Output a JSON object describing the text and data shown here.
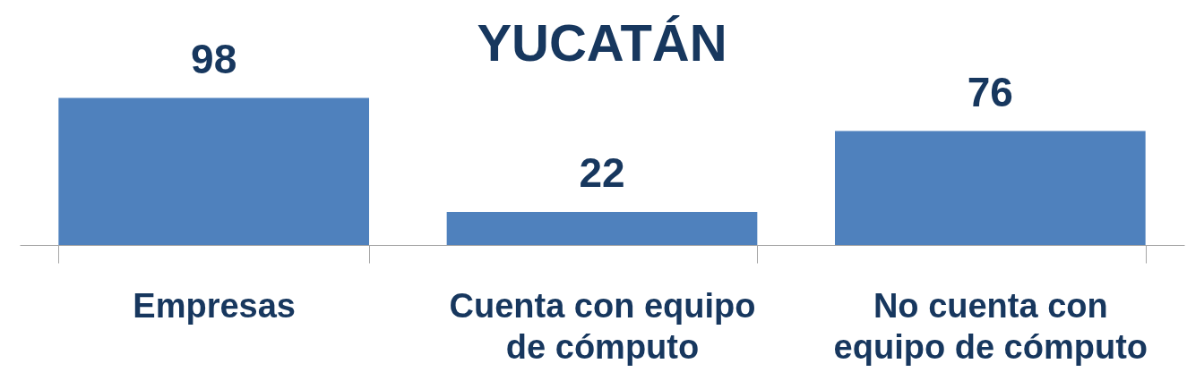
{
  "chart_data": {
    "type": "bar",
    "title": "YUCATÁN",
    "categories": [
      "Empresas",
      "Cuenta con equipo de cómputo",
      "No cuenta con equipo de cómputo"
    ],
    "values": [
      98,
      22,
      76
    ],
    "color": "#4f81bd",
    "data_labels": true,
    "grid": false
  }
}
